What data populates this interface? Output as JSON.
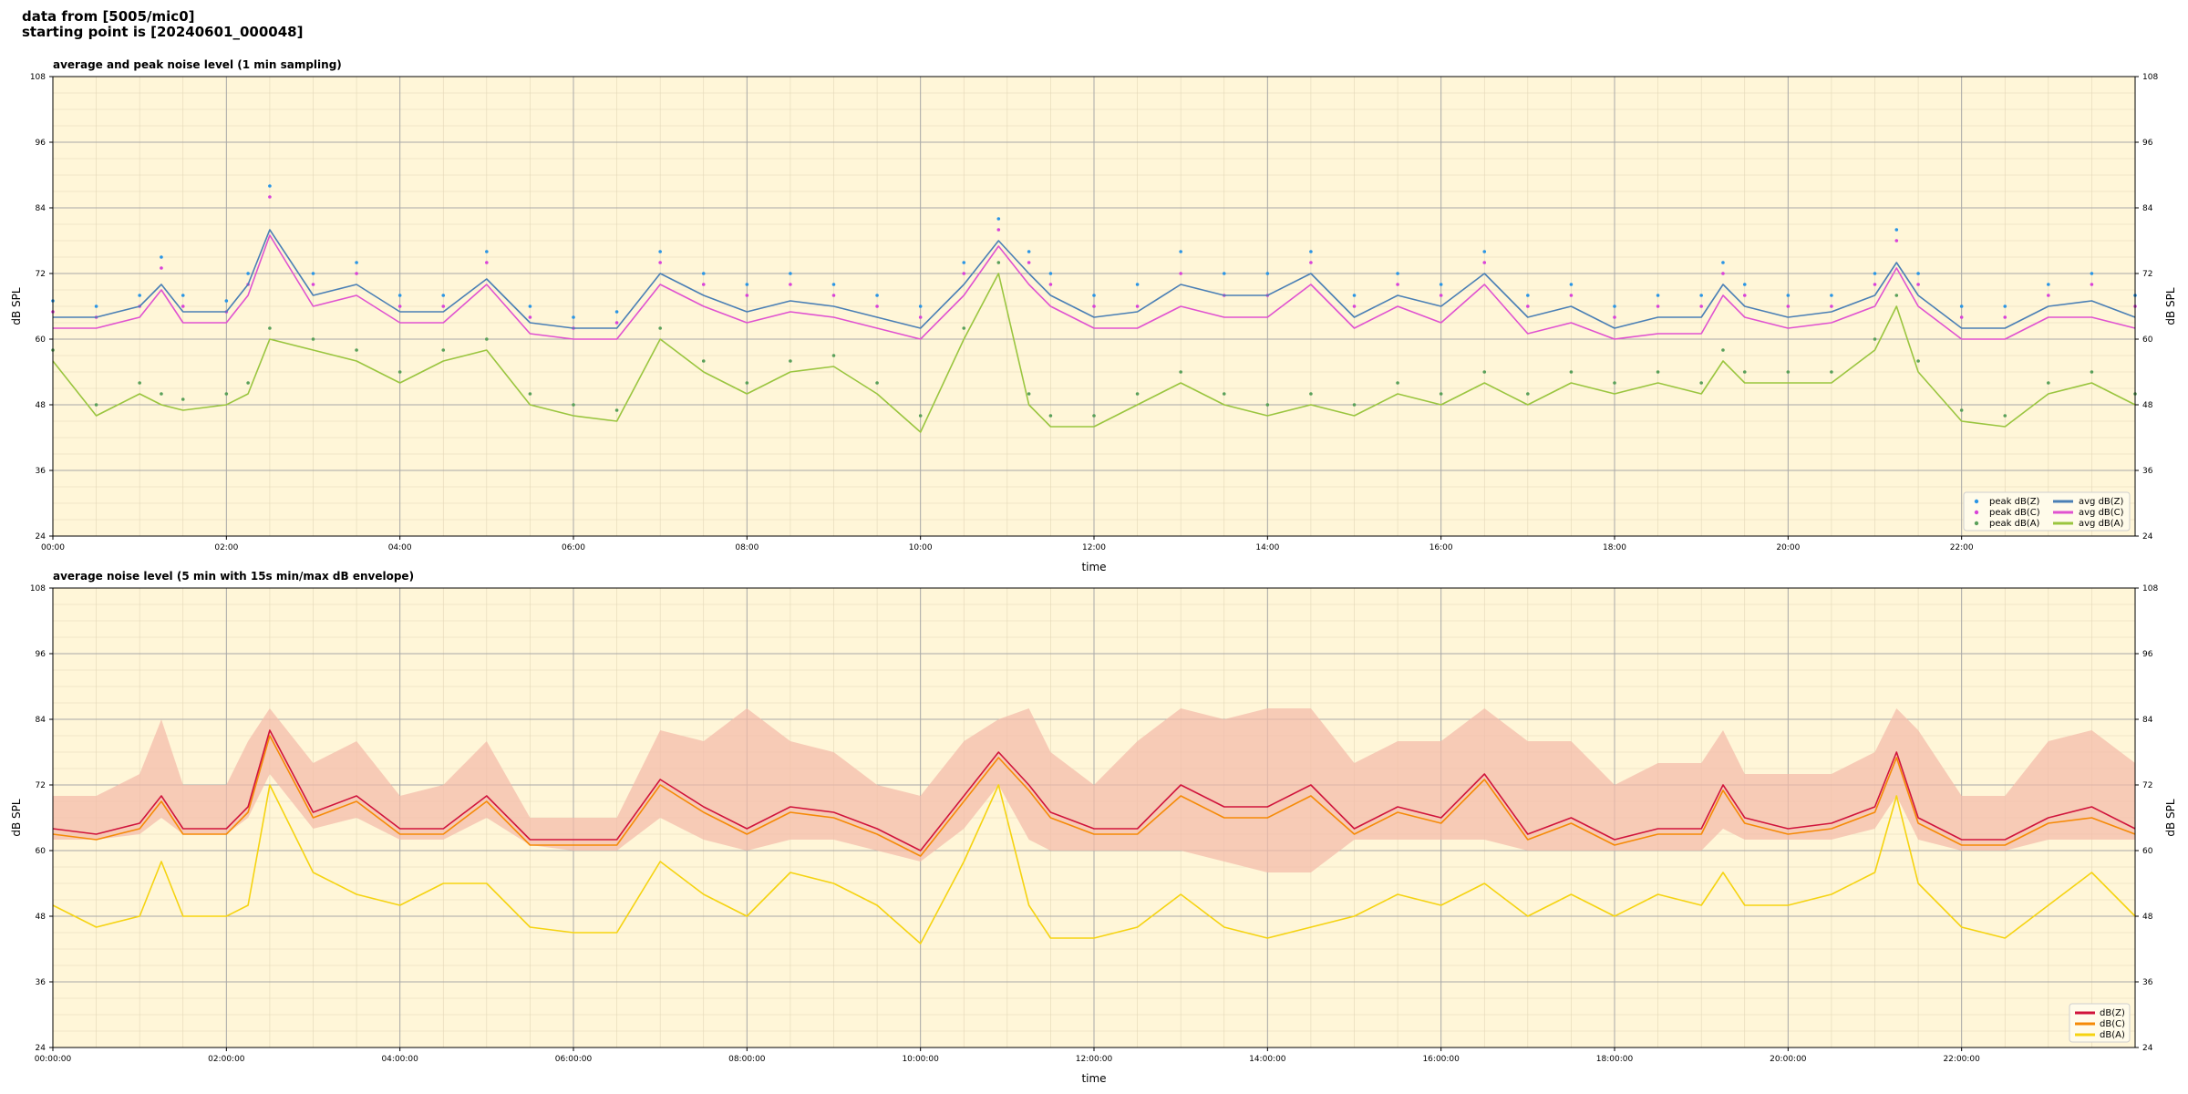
{
  "header": {
    "line1": "data from [5005/mic0]",
    "line2": "starting point is [20240601_000048]"
  },
  "chart_data": [
    {
      "type": "line",
      "title": "average and peak noise level (1 min sampling)",
      "xlabel": "time",
      "ylabel": "dB SPL",
      "xlim_hours": [
        0,
        24
      ],
      "ylim": [
        24,
        108
      ],
      "yticks": [
        24,
        36,
        48,
        60,
        72,
        84,
        96,
        108
      ],
      "xticks": [
        "00:00",
        "02:00",
        "04:00",
        "06:00",
        "08:00",
        "10:00",
        "12:00",
        "14:00",
        "16:00",
        "18:00",
        "20:00",
        "22:00"
      ],
      "grid": true,
      "legend": "bottom-right",
      "x_hours": [
        0,
        0.5,
        1,
        1.25,
        1.5,
        2,
        2.25,
        2.5,
        3,
        3.5,
        4,
        4.5,
        5,
        5.5,
        6,
        6.5,
        7,
        7.5,
        8,
        8.5,
        9,
        9.5,
        10,
        10.5,
        10.9,
        11.25,
        11.5,
        12,
        12.5,
        13,
        13.5,
        14,
        14.5,
        15,
        15.5,
        16,
        16.5,
        17,
        17.5,
        18,
        18.5,
        19,
        19.25,
        19.5,
        20,
        20.5,
        21,
        21.25,
        21.5,
        22,
        22.5,
        23,
        23.5,
        24
      ],
      "series": [
        {
          "name": "avg dB(Z)",
          "color": "#4a7fb5",
          "style": "line",
          "values": [
            64,
            64,
            66,
            70,
            65,
            65,
            70,
            80,
            68,
            70,
            65,
            65,
            71,
            63,
            62,
            62,
            72,
            68,
            65,
            67,
            66,
            64,
            62,
            70,
            78,
            72,
            68,
            64,
            65,
            70,
            68,
            68,
            72,
            64,
            68,
            66,
            72,
            64,
            66,
            62,
            64,
            64,
            70,
            66,
            64,
            65,
            68,
            74,
            68,
            62,
            62,
            66,
            67,
            64
          ]
        },
        {
          "name": "avg dB(C)",
          "color": "#e052d0",
          "style": "line",
          "values": [
            62,
            62,
            64,
            69,
            63,
            63,
            68,
            79,
            66,
            68,
            63,
            63,
            70,
            61,
            60,
            60,
            70,
            66,
            63,
            65,
            64,
            62,
            60,
            68,
            77,
            70,
            66,
            62,
            62,
            66,
            64,
            64,
            70,
            62,
            66,
            63,
            70,
            61,
            63,
            60,
            61,
            61,
            68,
            64,
            62,
            63,
            66,
            73,
            66,
            60,
            60,
            64,
            64,
            62
          ]
        },
        {
          "name": "avg dB(A)",
          "color": "#9ac53f",
          "style": "line",
          "values": [
            56,
            46,
            50,
            48,
            47,
            48,
            50,
            60,
            58,
            56,
            52,
            56,
            58,
            48,
            46,
            45,
            60,
            54,
            50,
            54,
            55,
            50,
            43,
            60,
            72,
            48,
            44,
            44,
            48,
            52,
            48,
            46,
            48,
            46,
            50,
            48,
            52,
            48,
            52,
            50,
            52,
            50,
            56,
            52,
            52,
            52,
            58,
            66,
            54,
            45,
            44,
            50,
            52,
            48
          ]
        },
        {
          "name": "peak dB(Z)",
          "color": "#2a95e5",
          "style": "dots",
          "values": [
            67,
            66,
            68,
            75,
            68,
            67,
            72,
            88,
            72,
            74,
            68,
            68,
            76,
            66,
            64,
            65,
            76,
            72,
            70,
            72,
            70,
            68,
            66,
            74,
            82,
            76,
            72,
            68,
            70,
            76,
            72,
            72,
            76,
            68,
            72,
            70,
            76,
            68,
            70,
            66,
            68,
            68,
            74,
            70,
            68,
            68,
            72,
            80,
            72,
            66,
            66,
            70,
            72,
            68
          ]
        },
        {
          "name": "peak dB(C)",
          "color": "#d942d8",
          "style": "dots",
          "values": [
            65,
            64,
            66,
            73,
            66,
            65,
            70,
            86,
            70,
            72,
            66,
            66,
            74,
            64,
            62,
            63,
            74,
            70,
            68,
            70,
            68,
            66,
            64,
            72,
            80,
            74,
            70,
            66,
            66,
            72,
            68,
            68,
            74,
            66,
            70,
            68,
            74,
            66,
            68,
            64,
            66,
            66,
            72,
            68,
            66,
            66,
            70,
            78,
            70,
            64,
            64,
            68,
            70,
            66
          ]
        },
        {
          "name": "peak dB(A)",
          "color": "#5aa05a",
          "style": "dots",
          "values": [
            58,
            48,
            52,
            50,
            49,
            50,
            52,
            62,
            60,
            58,
            54,
            58,
            60,
            50,
            48,
            47,
            62,
            56,
            52,
            56,
            57,
            52,
            46,
            62,
            74,
            50,
            46,
            46,
            50,
            54,
            50,
            48,
            50,
            48,
            52,
            50,
            54,
            50,
            54,
            52,
            54,
            52,
            58,
            54,
            54,
            54,
            60,
            68,
            56,
            47,
            46,
            52,
            54,
            50
          ]
        }
      ]
    },
    {
      "type": "line",
      "title": "average noise level (5 min with 15s min/max dB envelope)",
      "xlabel": "time",
      "ylabel": "dB SPL",
      "xlim_hours": [
        0,
        24
      ],
      "ylim": [
        24,
        108
      ],
      "yticks": [
        24,
        36,
        48,
        60,
        72,
        84,
        96,
        108
      ],
      "xticks": [
        "00:00:00",
        "02:00:00",
        "04:00:00",
        "06:00:00",
        "08:00:00",
        "10:00:00",
        "12:00:00",
        "14:00:00",
        "16:00:00",
        "18:00:00",
        "20:00:00",
        "22:00:00"
      ],
      "grid": true,
      "legend": "bottom-right",
      "x_hours": [
        0,
        0.5,
        1,
        1.25,
        1.5,
        2,
        2.25,
        2.5,
        3,
        3.5,
        4,
        4.5,
        5,
        5.5,
        6,
        6.5,
        7,
        7.5,
        8,
        8.5,
        9,
        9.5,
        10,
        10.5,
        10.9,
        11.25,
        11.5,
        12,
        12.5,
        13,
        13.5,
        14,
        14.5,
        15,
        15.5,
        16,
        16.5,
        17,
        17.5,
        18,
        18.5,
        19,
        19.25,
        19.5,
        20,
        20.5,
        21,
        21.25,
        21.5,
        22,
        22.5,
        23,
        23.5,
        24
      ],
      "envelope": {
        "color": "#f3b9a8",
        "min": [
          62,
          62,
          63,
          66,
          63,
          63,
          66,
          74,
          64,
          66,
          62,
          62,
          66,
          61,
          60,
          60,
          66,
          62,
          60,
          62,
          62,
          60,
          58,
          64,
          72,
          62,
          60,
          60,
          60,
          60,
          58,
          56,
          56,
          62,
          62,
          62,
          62,
          60,
          60,
          60,
          60,
          60,
          64,
          62,
          62,
          62,
          64,
          70,
          62,
          60,
          60,
          62,
          62,
          62
        ],
        "max": [
          70,
          70,
          74,
          84,
          72,
          72,
          80,
          86,
          76,
          80,
          70,
          72,
          80,
          66,
          66,
          66,
          82,
          80,
          86,
          80,
          78,
          72,
          70,
          80,
          84,
          86,
          78,
          72,
          80,
          86,
          84,
          86,
          86,
          76,
          80,
          80,
          86,
          80,
          80,
          72,
          76,
          76,
          82,
          74,
          74,
          74,
          78,
          86,
          82,
          70,
          70,
          80,
          82,
          76
        ]
      },
      "series": [
        {
          "name": "dB(Z)",
          "color": "#d0143c",
          "style": "line",
          "values": [
            64,
            63,
            65,
            70,
            64,
            64,
            68,
            82,
            67,
            70,
            64,
            64,
            70,
            62,
            62,
            62,
            73,
            68,
            64,
            68,
            67,
            64,
            60,
            70,
            78,
            72,
            67,
            64,
            64,
            72,
            68,
            68,
            72,
            64,
            68,
            66,
            74,
            63,
            66,
            62,
            64,
            64,
            72,
            66,
            64,
            65,
            68,
            78,
            66,
            62,
            62,
            66,
            68,
            64
          ]
        },
        {
          "name": "dB(C)",
          "color": "#f58a07",
          "style": "line",
          "values": [
            63,
            62,
            64,
            69,
            63,
            63,
            67,
            81,
            66,
            69,
            63,
            63,
            69,
            61,
            61,
            61,
            72,
            67,
            63,
            67,
            66,
            63,
            59,
            69,
            77,
            71,
            66,
            63,
            63,
            70,
            66,
            66,
            70,
            63,
            67,
            65,
            73,
            62,
            65,
            61,
            63,
            63,
            71,
            65,
            63,
            64,
            67,
            77,
            65,
            61,
            61,
            65,
            66,
            63
          ]
        },
        {
          "name": "dB(A)",
          "color": "#f5d311",
          "style": "line",
          "values": [
            50,
            46,
            48,
            58,
            48,
            48,
            50,
            72,
            56,
            52,
            50,
            54,
            54,
            46,
            45,
            45,
            58,
            52,
            48,
            56,
            54,
            50,
            43,
            58,
            72,
            50,
            44,
            44,
            46,
            52,
            46,
            44,
            46,
            48,
            52,
            50,
            54,
            48,
            52,
            48,
            52,
            50,
            56,
            50,
            50,
            52,
            56,
            70,
            54,
            46,
            44,
            50,
            56,
            48
          ]
        }
      ]
    }
  ]
}
